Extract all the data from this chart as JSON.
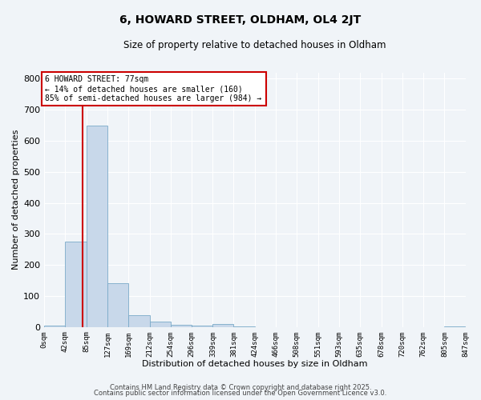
{
  "title": "6, HOWARD STREET, OLDHAM, OL4 2JT",
  "subtitle": "Size of property relative to detached houses in Oldham",
  "xlabel": "Distribution of detached houses by size in Oldham",
  "ylabel": "Number of detached properties",
  "bar_color": "#c8d8ea",
  "bar_edge_color": "#7aaac8",
  "bg_color": "#f0f4f8",
  "grid_color": "#ffffff",
  "bins": [
    0,
    42,
    85,
    127,
    169,
    212,
    254,
    296,
    339,
    381,
    424,
    466,
    508,
    551,
    593,
    635,
    678,
    720,
    762,
    805,
    847
  ],
  "values": [
    5,
    275,
    648,
    141,
    37,
    18,
    8,
    4,
    10,
    2,
    0,
    0,
    0,
    0,
    0,
    0,
    0,
    0,
    0,
    1
  ],
  "property_size": 77,
  "property_line_color": "#cc0000",
  "annotation_text": "6 HOWARD STREET: 77sqm\n← 14% of detached houses are smaller (160)\n85% of semi-detached houses are larger (984) →",
  "annotation_box_color": "#ffffff",
  "annotation_box_edge_color": "#cc0000",
  "ylim": [
    0,
    820
  ],
  "yticks": [
    0,
    100,
    200,
    300,
    400,
    500,
    600,
    700,
    800
  ],
  "tick_labels": [
    "0sqm",
    "42sqm",
    "85sqm",
    "127sqm",
    "169sqm",
    "212sqm",
    "254sqm",
    "296sqm",
    "339sqm",
    "381sqm",
    "424sqm",
    "466sqm",
    "508sqm",
    "551sqm",
    "593sqm",
    "635sqm",
    "678sqm",
    "720sqm",
    "762sqm",
    "805sqm",
    "847sqm"
  ],
  "footer_line1": "Contains HM Land Registry data © Crown copyright and database right 2025.",
  "footer_line2": "Contains public sector information licensed under the Open Government Licence v3.0."
}
